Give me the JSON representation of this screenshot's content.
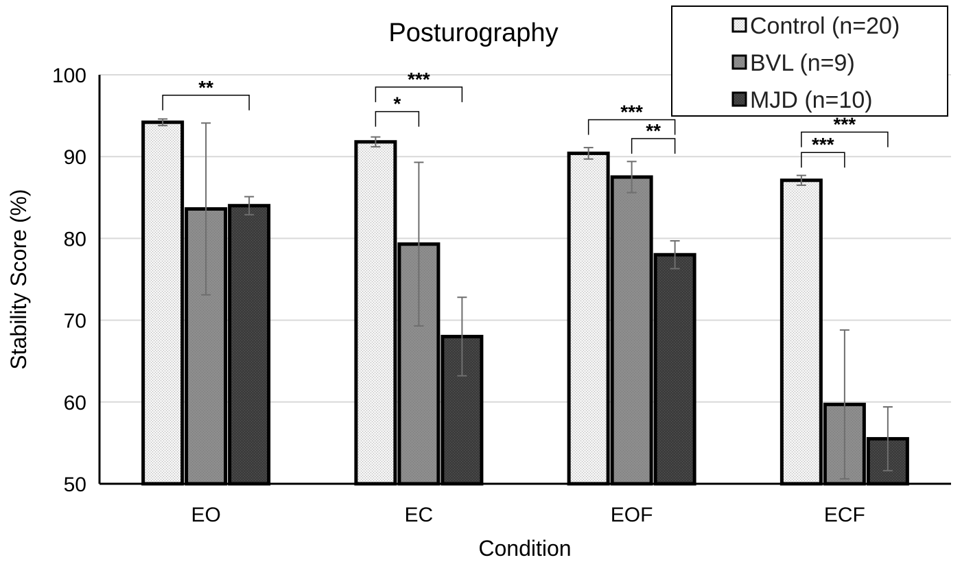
{
  "chart_data": {
    "type": "bar",
    "title": "Posturography",
    "xlabel": "Condition",
    "ylabel": "Stability Score (%)",
    "ylim": [
      50,
      100
    ],
    "yticks": [
      "50",
      "60",
      "70",
      "80",
      "90",
      "100"
    ],
    "grid": true,
    "legend_position": "top-right",
    "categories": [
      "EO",
      "EC",
      "EOF",
      "ECF"
    ],
    "series": [
      {
        "name": "Control (n=20)",
        "color": "#efefef",
        "values": [
          94.2,
          91.8,
          90.4,
          87.1
        ],
        "errors": [
          0.4,
          0.6,
          0.7,
          0.6
        ]
      },
      {
        "name": "BVL (n=9)",
        "color": "#8c8c8c",
        "values": [
          83.6,
          79.3,
          87.5,
          59.7
        ],
        "errors": [
          10.5,
          10.0,
          1.9,
          9.1
        ]
      },
      {
        "name": "MJD (n=10)",
        "color": "#3a3a3a",
        "values": [
          84.0,
          68.0,
          78.0,
          55.5
        ],
        "errors": [
          1.1,
          4.8,
          1.7,
          3.9
        ]
      }
    ],
    "annotations": [
      {
        "category": 0,
        "from": 0,
        "to": 2,
        "label": "**",
        "y": 97.5
      },
      {
        "category": 1,
        "from": 0,
        "to": 1,
        "label": "*",
        "y": 95.5
      },
      {
        "category": 1,
        "from": 0,
        "to": 2,
        "label": "***",
        "y": 98.5
      },
      {
        "category": 2,
        "from": 0,
        "to": 2,
        "label": "***",
        "y": 94.5
      },
      {
        "category": 2,
        "from": 1,
        "to": 2,
        "label": "**",
        "y": 92.2
      },
      {
        "category": 3,
        "from": 0,
        "to": 1,
        "label": "***",
        "y": 90.5
      },
      {
        "category": 3,
        "from": 0,
        "to": 2,
        "label": "***",
        "y": 93.0
      }
    ]
  }
}
